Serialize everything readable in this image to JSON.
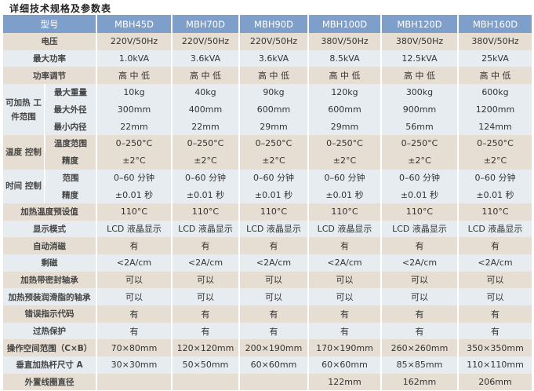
{
  "title": "详细技术规格及参数表",
  "header": {
    "label": "型号",
    "models": [
      "MBH45D",
      "MBH70D",
      "MBH90D",
      "MBH100D",
      "MBH120D",
      "MBH160D"
    ]
  },
  "colors": {
    "header": "#7f9fcb",
    "beige": "#e6ded2",
    "light": "#e7ecf0"
  },
  "rows": [
    {
      "label": "电压",
      "values": [
        "220V/50Hz",
        "220V/50Hz",
        "220V/50Hz",
        "380V/50Hz",
        "380V/50Hz",
        "380V/50Hz"
      ]
    },
    {
      "label": "最大功率",
      "values": [
        "1.0kVA",
        "3.6kVA",
        "3.6kVA",
        "8.5kVA",
        "12.5kVA",
        "25kVA"
      ]
    },
    {
      "label": "功率调节",
      "values": [
        "高 中 低",
        "高 中 低",
        "高 中 低",
        "高 中 低",
        "高 中 低",
        "高 中 低"
      ]
    },
    {
      "group": "可加热 工件范围",
      "sub": [
        {
          "label": "最大重量",
          "values": [
            "10kg",
            "40kg",
            "90kg",
            "120kg",
            "300kg",
            "600kg"
          ]
        },
        {
          "label": "最大外径",
          "values": [
            "300mm",
            "400mm",
            "600mm",
            "600mm",
            "900mm",
            "1200mm"
          ]
        },
        {
          "label": "最小内径",
          "values": [
            "22mm",
            "22mm",
            "29mm",
            "29mm",
            "56mm",
            "124mm"
          ]
        }
      ]
    },
    {
      "group": "温度 控制",
      "sub": [
        {
          "label": "温度范围",
          "values": [
            "0–250°C",
            "0–250°C",
            "0–250°C",
            "0–250°C",
            "0–250°C",
            "0–250°C"
          ]
        },
        {
          "label": "精度",
          "values": [
            "±2°C",
            "±2°C",
            "±2°C",
            "±2°C",
            "±2°C",
            "±2°C"
          ]
        }
      ]
    },
    {
      "group": "时间 控制",
      "sub": [
        {
          "label": "范围",
          "values": [
            "0–60 分钟",
            "0–60 分钟",
            "0–60 分钟",
            "0–60 分钟",
            "0–60 分钟",
            "0–60 分钟"
          ]
        },
        {
          "label": "精度",
          "values": [
            "±0.01 秒",
            "±0.01 秒",
            "±0.01 秒",
            "±0.01 秒",
            "±0.01 秒",
            "±0.01 秒"
          ]
        }
      ]
    },
    {
      "label": "加热温度预设值",
      "values": [
        "110°C",
        "110°C",
        "110°C",
        "110°C",
        "110°C",
        "110°C"
      ]
    },
    {
      "label": "显示模式",
      "values": [
        "LCD 液晶显示",
        "LCD 液晶显示",
        "LCD 液晶显示",
        "LCD 液晶显示",
        "LCD 液晶显示",
        "LCD 液晶显示"
      ]
    },
    {
      "label": "自动消磁",
      "values": [
        "有",
        "有",
        "有",
        "有",
        "有",
        "有"
      ]
    },
    {
      "label": "剩磁",
      "values": [
        "<2A/cm",
        "<2A/cm",
        "<2A/cm",
        "<2A/cm",
        "<2A/cm",
        "<2A/cm"
      ]
    },
    {
      "label": "加热带密封轴承",
      "values": [
        "可以",
        "可以",
        "可以",
        "可以",
        "可以",
        "可以"
      ]
    },
    {
      "label": "加热预装润滑脂的轴承",
      "values": [
        "可以",
        "可以",
        "可以",
        "可以",
        "可以",
        "可以"
      ]
    },
    {
      "label": "错误指示代码",
      "values": [
        "有",
        "有",
        "有",
        "有",
        "有",
        "有"
      ]
    },
    {
      "label": "过热保护",
      "values": [
        "有",
        "有",
        "有",
        "有",
        "有",
        "有"
      ]
    },
    {
      "label": "操作空间范围（C×B）",
      "values": [
        "70×80mm",
        "120×120mm",
        "200×190mm",
        "170×190mm",
        "260×260mm",
        "350×350mm"
      ]
    },
    {
      "label": "垂直加热杆尺寸 A",
      "values": [
        "30×30mm",
        "50×50mm",
        "60×60mm",
        "60×60mm",
        "85×85mm",
        "110×110mm"
      ]
    },
    {
      "label": "外置线圈直径",
      "values": [
        "",
        "",
        "",
        "122mm",
        "162mm",
        "206mm"
      ]
    }
  ]
}
